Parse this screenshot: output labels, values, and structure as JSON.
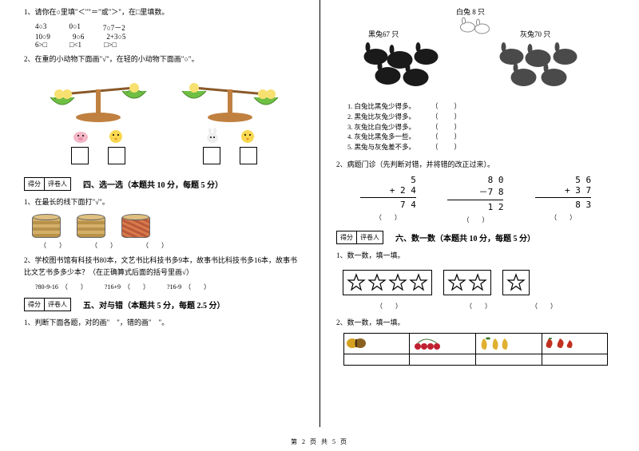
{
  "left": {
    "q1": {
      "text": "1、请你在○里填\"＜\"\"＝\"或\"＞\"，在□里填数。",
      "rows": [
        [
          "4○3",
          "0○1",
          "7○7－2"
        ],
        [
          "10○9",
          "9○6",
          "2+3○5"
        ],
        [
          "6>□",
          "□<1",
          "□>□"
        ]
      ]
    },
    "q2": "2、在重的小动物下面画\"√\"，在轻的小动物下面画\"○\"。",
    "sec4": {
      "score_labels": [
        "得分",
        "评卷人"
      ],
      "title": "四、选一选（本题共 10 分，每题 5 分）",
      "q1": "1、在最长的线下面打\"√\"。",
      "parens": [
        "（　　）",
        "（　　）",
        "（　　）"
      ],
      "q2": "2、学校图书馆有科技书80本，文艺书比科技书多9本，故事书比科技书多16本，故事书比文艺书多多少本？（在正确算式后面的括号里画√）",
      "opts": [
        "?80-9-16　（　　）",
        "?16+9　（　　）",
        "?16-9　（　　）"
      ]
    },
    "sec5": {
      "score_labels": [
        "得分",
        "评卷人"
      ],
      "title": "五、对与错（本题共 5 分，每题 2.5 分）",
      "q1": "1、判断下面各题，对的画\"　\"，错的画\"　\"。"
    }
  },
  "right": {
    "rabbits": {
      "white": "白兔 8 只",
      "black": "黑兔67 只",
      "gray": "灰兔70 只",
      "items": [
        "1. 白兔比黑兔少得多。",
        "2. 黑兔比灰兔少得多。",
        "3. 灰兔比白兔少得多。",
        "4. 灰兔比黑兔多一些。",
        "5. 黑兔与灰兔差不多。"
      ],
      "paren": "（　　）"
    },
    "q2": {
      "text": "2、病题门诊（先判断对错，并将错的改正过来）。",
      "cols": [
        {
          "a": "5",
          "b": "+ 2 4",
          "r": "7 4"
        },
        {
          "a": "8 0",
          "b": "－7 8",
          "r": "1 2"
        },
        {
          "a": "5 6",
          "b": "+ 3 7",
          "r": "8 3"
        }
      ],
      "paren": "（　　）"
    },
    "sec6": {
      "score_labels": [
        "得分",
        "评卷人"
      ],
      "title": "六、数一数（本题共 10 分，每题 5 分）",
      "q1": "1、数一数，填一填。",
      "star_counts": [
        4,
        2,
        1
      ],
      "parens": [
        "（　　）",
        "（　　）",
        "（　　）"
      ],
      "q2": "2、数一数，填一填。"
    }
  },
  "footer": "第 2 页 共 5 页",
  "colors": {
    "balance_green": "#6fbf44",
    "balance_orange": "#e8a23a",
    "balance_base": "#c08040",
    "star_stroke": "#000000",
    "rabbit_black": "#1a1a1a",
    "rabbit_gray": "#4a4a4a",
    "fruit1": "#d4a020",
    "fruit2": "#c02030",
    "fruit3": "#e0b030",
    "fruit4": "#c03020"
  }
}
